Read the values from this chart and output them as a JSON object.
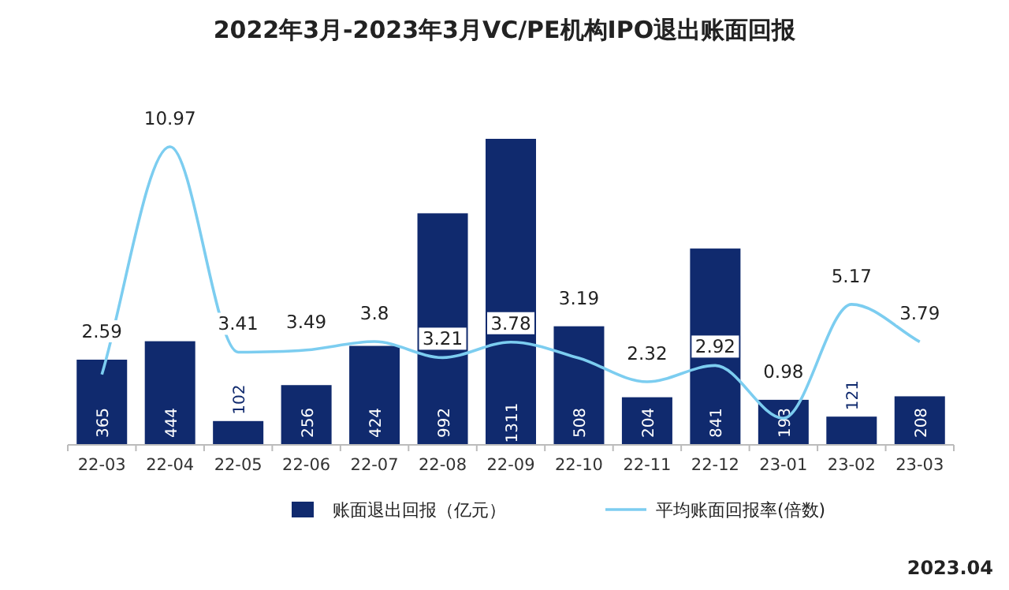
{
  "chart_data": {
    "type": "bar",
    "title": "2022年3月-2023年3月VC/PE机构IPO退出账面回报",
    "categories": [
      "22-03",
      "22-04",
      "22-05",
      "22-06",
      "22-07",
      "22-08",
      "22-09",
      "22-10",
      "22-11",
      "22-12",
      "23-01",
      "23-02",
      "23-03"
    ],
    "series": [
      {
        "name": "账面退出回报（亿元）",
        "type": "bar",
        "color": "#102a6e",
        "values": [
          365,
          444,
          102,
          256,
          424,
          992,
          1311,
          508,
          204,
          841,
          193,
          121,
          208
        ]
      },
      {
        "name": "平均账面回报率(倍数)",
        "type": "line",
        "axis": "y2",
        "color": "#7ccdf0",
        "values": [
          2.59,
          10.97,
          3.41,
          3.49,
          3.8,
          3.21,
          3.78,
          3.19,
          2.32,
          2.92,
          0.98,
          5.17,
          3.79
        ]
      }
    ],
    "data_labels": true,
    "legend": "bottom",
    "grid": false,
    "annotations": [
      "2023.04"
    ]
  }
}
